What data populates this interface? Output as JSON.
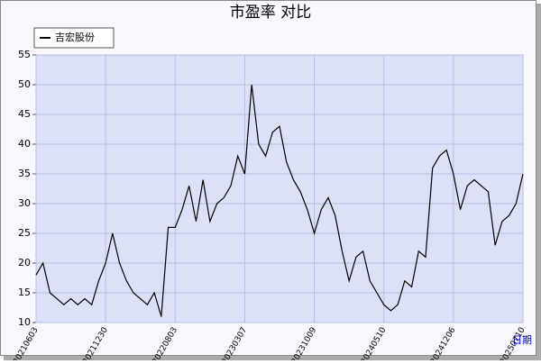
{
  "chart_data": {
    "type": "line",
    "title": "市盈率  对比",
    "x_label": "日期",
    "categories": [
      "20210603",
      null,
      null,
      null,
      null,
      null,
      null,
      null,
      null,
      null,
      "20211230",
      null,
      null,
      null,
      null,
      null,
      null,
      null,
      null,
      null,
      "20220803",
      null,
      null,
      null,
      null,
      null,
      null,
      null,
      null,
      null,
      "20230307",
      null,
      null,
      null,
      null,
      null,
      null,
      null,
      null,
      null,
      "20231009",
      null,
      null,
      null,
      null,
      null,
      null,
      null,
      null,
      null,
      "20240510",
      null,
      null,
      null,
      null,
      null,
      null,
      null,
      null,
      null,
      "20241206",
      null,
      null,
      null,
      null,
      null,
      null,
      null,
      null,
      null,
      "20250710"
    ],
    "series": [
      {
        "name": "吉宏股份",
        "color": "#000000",
        "values": [
          18,
          20,
          15,
          14,
          13,
          14,
          13,
          14,
          13,
          17,
          20,
          25,
          20,
          17,
          15,
          14,
          13,
          15,
          11,
          26,
          26,
          29,
          33,
          27,
          34,
          27,
          30,
          31,
          33,
          38,
          35,
          50,
          40,
          38,
          42,
          43,
          37,
          34,
          32,
          29,
          25,
          29,
          31,
          28,
          22,
          17,
          21,
          22,
          17,
          15,
          13,
          12,
          13,
          17,
          16,
          22,
          21,
          36,
          38,
          39,
          35,
          29,
          33,
          34,
          33,
          32,
          23,
          27,
          28,
          30,
          35
        ]
      }
    ],
    "ylim": [
      10,
      55
    ],
    "yticks": [
      10,
      15,
      20,
      25,
      30,
      35,
      40,
      45,
      50,
      55
    ],
    "grid": true,
    "legend": "top-left"
  }
}
